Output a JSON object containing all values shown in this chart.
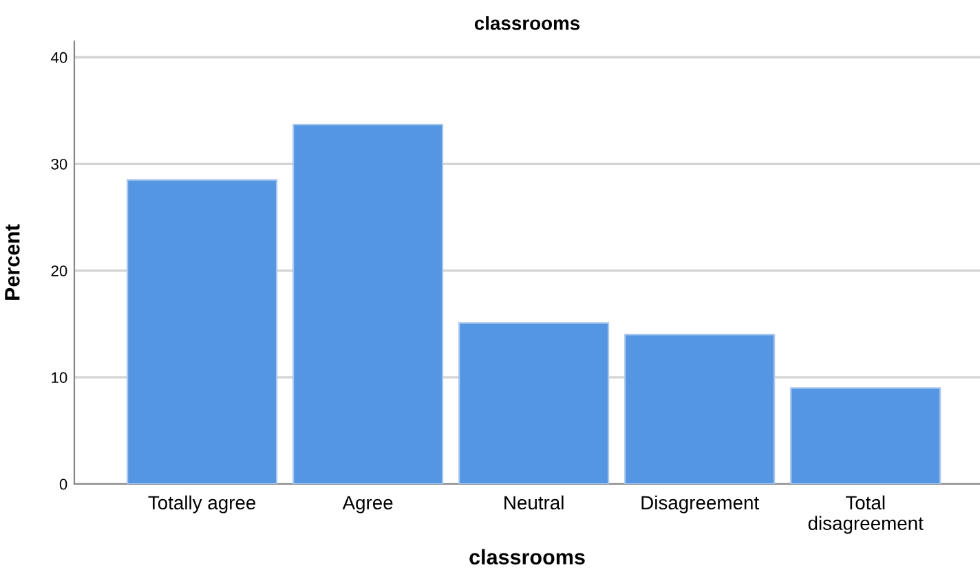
{
  "chart_data": {
    "type": "bar",
    "title": "classrooms",
    "xlabel": "classrooms",
    "ylabel": "Percent",
    "categories": [
      "Totally agree",
      "Agree",
      "Neutral",
      "Disagreement",
      "Total\ndisagreement"
    ],
    "values": [
      28.5,
      33.7,
      15.1,
      14.0,
      9.0
    ],
    "color": "#5596e3",
    "ylim": [
      0,
      41.5
    ],
    "yticks": [
      0,
      10,
      20,
      30,
      40
    ],
    "grid": "y"
  }
}
